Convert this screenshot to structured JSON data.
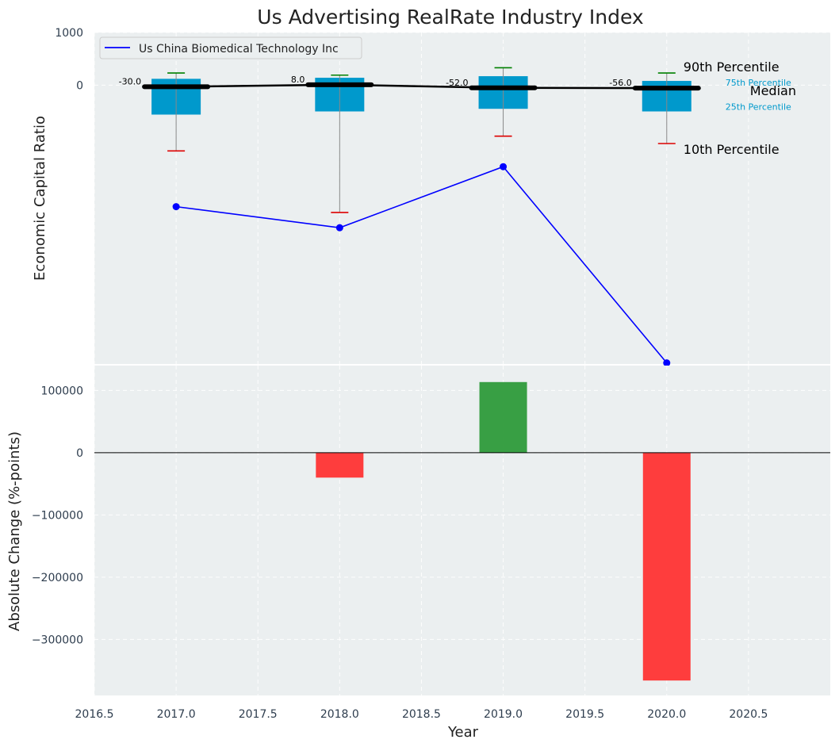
{
  "chart_data": [
    {
      "type": "boxplot-line",
      "title": "Us Advertising RealRate Industry Index",
      "xlabel": "",
      "ylabel": "Economic Capital Ratio",
      "ylim": [
        -5300,
        1000
      ],
      "xlim": [
        2016.5,
        2021.0
      ],
      "x": [
        2017,
        2018,
        2019,
        2020
      ],
      "ytick_values": [
        0,
        1000
      ],
      "ytick_labels": [
        "0",
        "1000"
      ],
      "xtick_values": [
        2016.5,
        2017.0,
        2017.5,
        2018.0,
        2018.5,
        2019.0,
        2019.5,
        2020.0,
        2020.5
      ],
      "xtick_labels": [
        "2016.5",
        "2017.0",
        "2017.5",
        "2018.0",
        "2018.5",
        "2019.0",
        "2019.5",
        "2020.0",
        "2020.5"
      ],
      "boxes": [
        {
          "x": 2017,
          "p10": -1250,
          "p25": -560,
          "median": -30,
          "p75": 120,
          "p90": 230,
          "median_label": "-30.0"
        },
        {
          "x": 2018,
          "p10": -2420,
          "p25": -500,
          "median": 8,
          "p75": 140,
          "p90": 190,
          "median_label": "8.0"
        },
        {
          "x": 2019,
          "p10": -970,
          "p25": -450,
          "median": -52,
          "p75": 170,
          "p90": 330,
          "median_label": "-52.0"
        },
        {
          "x": 2020,
          "p10": -1110,
          "p25": -500,
          "median": -56,
          "p75": 80,
          "p90": 230,
          "median_label": "-56.0"
        }
      ],
      "series": [
        {
          "name": "Us China Biomedical Technology Inc",
          "color": "#0000ff",
          "values": [
            -2310,
            -2710,
            -1550,
            -5280
          ]
        }
      ],
      "legend": {
        "entries": [
          "Us China Biomedical Technology Inc"
        ],
        "position": "top-left"
      },
      "annotations": {
        "p90": "90th Percentile",
        "p75": "75th Percentile",
        "median": "Median",
        "p25": "25th Percentile",
        "p10": "10th Percentile"
      },
      "colors": {
        "box": "#0099cc",
        "median": "#000000",
        "whisker": "#888888",
        "cap_high": "#008000",
        "cap_low": "#dd0000",
        "bg": "#ebeff0"
      }
    },
    {
      "type": "bar",
      "title": "",
      "xlabel": "Year",
      "ylabel": "Absolute Change (%-points)",
      "ylim": [
        -390000,
        140000
      ],
      "xlim": [
        2016.5,
        2021.0
      ],
      "categories": [
        2017,
        2018,
        2019,
        2020
      ],
      "values": [
        0,
        -40000,
        113500,
        -366000
      ],
      "ytick_values": [
        100000,
        0,
        -100000,
        -200000,
        -300000
      ],
      "ytick_labels": [
        "100000",
        "0",
        "−100000",
        "−200000",
        "−300000"
      ],
      "xtick_values": [
        2016.5,
        2017.0,
        2017.5,
        2018.0,
        2018.5,
        2019.0,
        2019.5,
        2020.0,
        2020.5
      ],
      "xtick_labels": [
        "2016.5",
        "2017.0",
        "2017.5",
        "2018.0",
        "2018.5",
        "2019.0",
        "2019.5",
        "2020.0",
        "2020.5"
      ],
      "colors": {
        "positive": "#2e9a3a",
        "negative": "#ff3333",
        "bg": "#ebeff0"
      }
    }
  ]
}
